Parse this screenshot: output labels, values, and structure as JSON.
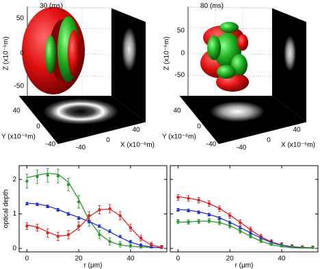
{
  "renderings": [
    {
      "title": "30 (ms)",
      "z_label": "Z (x10⁻⁶m)",
      "y_label": "Y (x10⁻⁶m)",
      "x_label": "X (x10⁻⁶m)",
      "z_ticks": [
        50,
        0,
        -50
      ],
      "y_ticks": [
        40,
        0,
        -40
      ],
      "x_ticks": [
        -40,
        0,
        40
      ]
    },
    {
      "title": "80 (ms)",
      "z_label": "Z (x10⁻⁶m)",
      "y_label": "Y (x10⁻⁶m)",
      "x_label": "X (x10⁻⁶m)",
      "z_ticks": [
        50,
        0,
        -50
      ],
      "y_ticks": [
        40,
        0,
        -40
      ],
      "x_ticks": [
        -40,
        0,
        40
      ]
    }
  ],
  "chart_data": [
    {
      "type": "line",
      "xlabel": "r (μm)",
      "ylabel": "optical depth",
      "show_ytick_labels": true,
      "x": [
        0,
        4,
        8,
        12,
        16,
        20,
        24,
        28,
        32,
        36,
        40,
        44,
        48,
        52
      ],
      "xlim": [
        -3,
        54
      ],
      "ylim": [
        -0.1,
        2.4
      ],
      "xticks": [
        0,
        20,
        40
      ],
      "yticks": [
        0,
        1,
        2
      ],
      "series": [
        {
          "color": "#2a962a",
          "marker": "circle",
          "values": [
            1.95,
            2.08,
            2.12,
            2.1,
            1.85,
            1.35,
            0.8,
            0.4,
            0.2,
            0.12,
            0.08,
            0.06,
            0.05,
            0.04
          ],
          "errors": [
            0.2,
            0.2,
            0.2,
            0.2,
            0.18,
            0.18,
            0.15,
            0.12,
            0.1,
            0.08,
            0.06,
            0.05,
            0.04,
            0.04
          ],
          "fit": [
            2.05,
            2.12,
            2.18,
            2.15,
            1.92,
            1.42,
            0.82,
            0.42,
            0.2,
            0.1,
            0.06,
            0.04,
            0.03,
            0.02
          ]
        },
        {
          "color": "#2233cc",
          "marker": "triangle",
          "values": [
            1.3,
            1.28,
            1.22,
            1.12,
            1.0,
            0.88,
            0.78,
            0.65,
            0.5,
            0.35,
            0.2,
            0.1,
            0.05,
            0.03
          ],
          "errors": [
            0.04,
            0.04,
            0.04,
            0.04,
            0.04,
            0.04,
            0.04,
            0.04,
            0.04,
            0.03,
            0.03,
            0.03,
            0.02,
            0.02
          ],
          "fit": [
            1.31,
            1.29,
            1.23,
            1.13,
            1.01,
            0.9,
            0.78,
            0.64,
            0.48,
            0.32,
            0.18,
            0.09,
            0.04,
            0.02
          ]
        },
        {
          "color": "#e0201e",
          "marker": "circle",
          "values": [
            0.65,
            0.6,
            0.45,
            0.35,
            0.4,
            0.65,
            0.95,
            1.12,
            1.15,
            0.95,
            0.6,
            0.3,
            0.12,
            0.05
          ],
          "errors": [
            0.1,
            0.1,
            0.12,
            0.12,
            0.12,
            0.12,
            0.12,
            0.12,
            0.12,
            0.12,
            0.1,
            0.08,
            0.06,
            0.04
          ],
          "fit": [
            0.68,
            0.62,
            0.48,
            0.36,
            0.38,
            0.6,
            0.92,
            1.12,
            1.14,
            0.95,
            0.6,
            0.28,
            0.1,
            0.03
          ]
        }
      ]
    },
    {
      "type": "line",
      "xlabel": "r (μm)",
      "show_ytick_labels": false,
      "x": [
        0,
        4,
        8,
        12,
        16,
        20,
        24,
        28,
        32,
        36,
        40,
        44,
        48,
        52
      ],
      "xlim": [
        -3,
        54
      ],
      "ylim": [
        -0.1,
        2.4
      ],
      "xticks": [
        0,
        20,
        40
      ],
      "yticks": [
        0,
        1,
        2
      ],
      "series": [
        {
          "color": "#e0201e",
          "marker": "circle",
          "values": [
            1.48,
            1.45,
            1.4,
            1.3,
            1.15,
            0.95,
            0.75,
            0.55,
            0.35,
            0.2,
            0.12,
            0.07,
            0.05,
            0.04
          ],
          "errors": [
            0.08,
            0.08,
            0.08,
            0.08,
            0.08,
            0.08,
            0.08,
            0.07,
            0.06,
            0.05,
            0.05,
            0.04,
            0.03,
            0.03
          ],
          "fit": [
            1.5,
            1.46,
            1.4,
            1.3,
            1.16,
            0.97,
            0.76,
            0.54,
            0.34,
            0.19,
            0.1,
            0.05,
            0.03,
            0.02
          ]
        },
        {
          "color": "#2233cc",
          "marker": "triangle",
          "values": [
            1.12,
            1.1,
            1.05,
            0.98,
            0.88,
            0.75,
            0.6,
            0.45,
            0.3,
            0.18,
            0.1,
            0.06,
            0.04,
            0.03
          ],
          "errors": [
            0.04,
            0.04,
            0.04,
            0.04,
            0.04,
            0.04,
            0.04,
            0.04,
            0.04,
            0.03,
            0.03,
            0.02,
            0.02,
            0.02
          ],
          "fit": [
            1.13,
            1.11,
            1.06,
            0.99,
            0.89,
            0.76,
            0.61,
            0.45,
            0.3,
            0.17,
            0.09,
            0.04,
            0.02,
            0.01
          ]
        },
        {
          "color": "#2a962a",
          "marker": "circle",
          "values": [
            0.78,
            0.76,
            0.78,
            0.8,
            0.75,
            0.65,
            0.5,
            0.35,
            0.22,
            0.13,
            0.08,
            0.05,
            0.04,
            0.03
          ],
          "errors": [
            0.06,
            0.06,
            0.06,
            0.06,
            0.06,
            0.06,
            0.06,
            0.05,
            0.05,
            0.04,
            0.04,
            0.03,
            0.03,
            0.03
          ],
          "fit": [
            0.76,
            0.77,
            0.79,
            0.79,
            0.75,
            0.66,
            0.51,
            0.35,
            0.21,
            0.11,
            0.05,
            0.02,
            0.01,
            0.01
          ]
        }
      ]
    }
  ]
}
